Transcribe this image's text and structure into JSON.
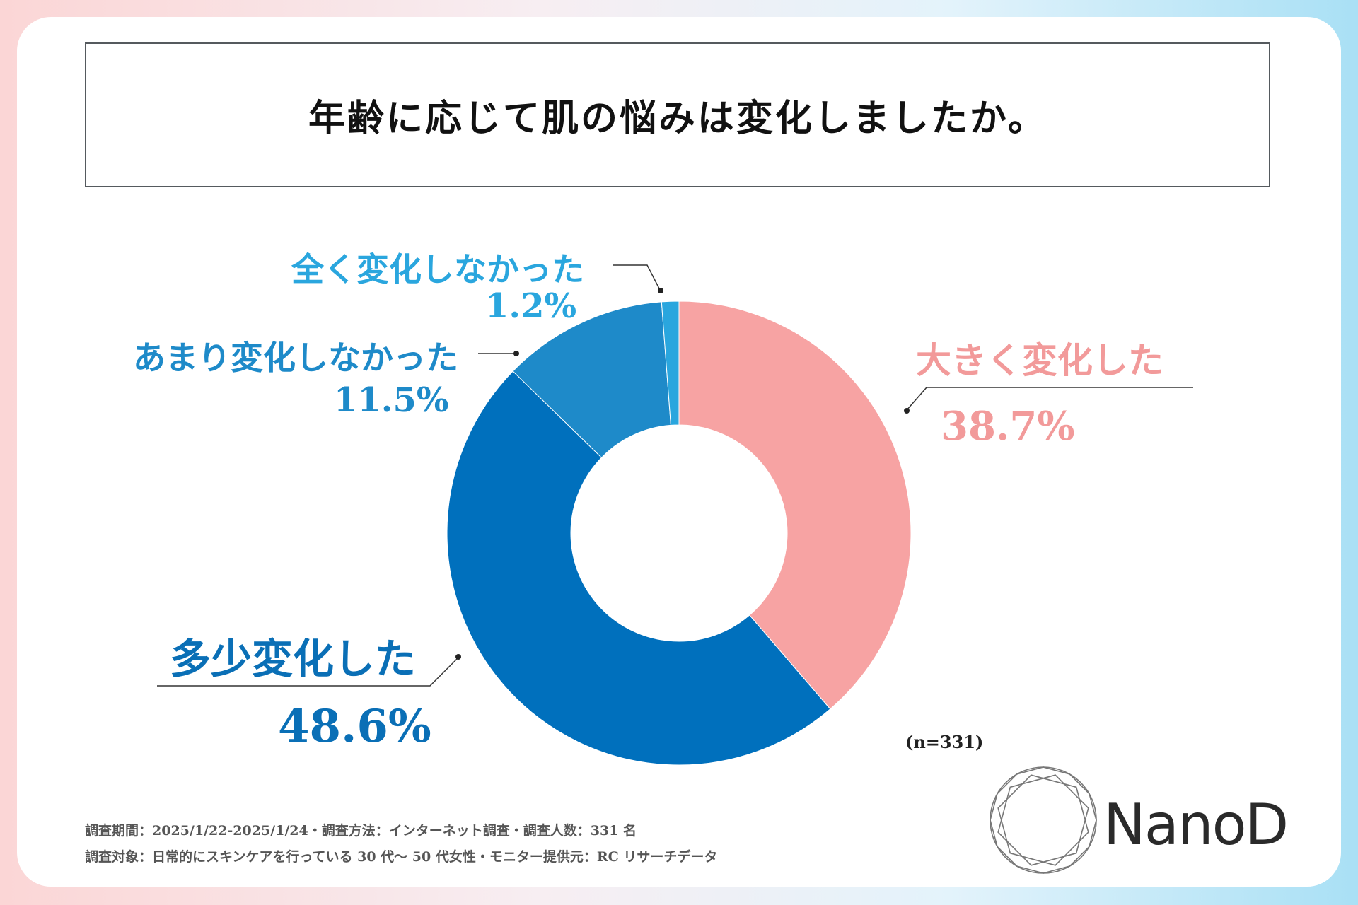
{
  "title": "年齢に応じて肌の悩みは変化しましたか。",
  "chart_data": {
    "type": "pie",
    "subtype": "donut",
    "title": "年齢に応じて肌の悩みは変化しましたか。",
    "categories": [
      "大きく変化した",
      "多少変化した",
      "あまり変化しなかった",
      "全く変化しなかった"
    ],
    "values": [
      38.7,
      48.6,
      11.5,
      1.2
    ],
    "value_labels": [
      "38.7%",
      "48.6%",
      "11.5%",
      "1.2%"
    ],
    "colors": [
      "#f7a3a3",
      "#0070bd",
      "#1e8ac9",
      "#2aa6de"
    ],
    "label_colors": [
      "#f29a9a",
      "#0a6fb6",
      "#1e8ac9",
      "#2aa6de"
    ],
    "sample_size": "(n=331)"
  },
  "footnotes": {
    "line1": "調査期間：2025/1/22-2025/1/24・調査方法：インターネット調査・調査人数：331 名",
    "line2": "調査対象：日常的にスキンケアを行っている 30 代〜 50 代女性・モニター提供元：RC リサーチデータ"
  },
  "logo": {
    "text": "NanoD"
  }
}
